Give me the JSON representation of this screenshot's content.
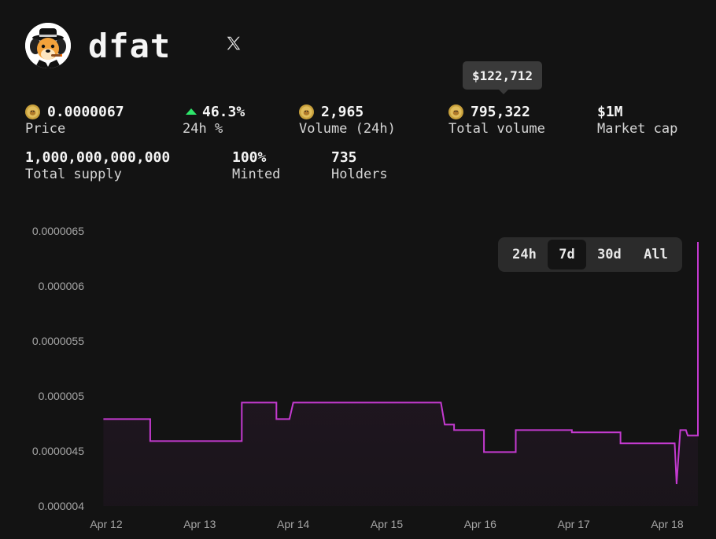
{
  "token": {
    "name": "dfat",
    "avatar_icon": "dog-in-hat-avatar-icon",
    "social_icon": "x-logo-icon"
  },
  "tooltip": {
    "text": "$122,712"
  },
  "stats": {
    "price": {
      "value": "0.0000067",
      "label": "Price",
      "icon": "doge-coin-icon"
    },
    "change": {
      "value": "46.3%",
      "label": "24h %",
      "icon": "triangle-up-icon",
      "color": "#2ee66b"
    },
    "volume24h": {
      "value": "2,965",
      "label": "Volume (24h)",
      "icon": "doge-coin-icon"
    },
    "total_volume": {
      "value": "795,322",
      "label": "Total volume",
      "icon": "doge-coin-icon"
    },
    "market_cap": {
      "value": "$1M",
      "label": "Market cap"
    },
    "total_supply": {
      "value": "1,000,000,000,000",
      "label": "Total supply"
    },
    "minted": {
      "value": "100%",
      "label": "Minted"
    },
    "holders": {
      "value": "735",
      "label": "Holders"
    }
  },
  "range_selector": {
    "options": [
      "24h",
      "7d",
      "30d",
      "All"
    ],
    "selected": "7d"
  },
  "colors": {
    "background": "#131313",
    "line": "#c43ad0",
    "positive": "#2ee66b",
    "coin": "#c9a13c"
  },
  "chart_data": {
    "type": "line",
    "step": true,
    "ylim": [
      4e-06,
      6.5e-06
    ],
    "yticks": [
      {
        "value": 6.5e-06,
        "label": "0.0000065"
      },
      {
        "value": 6e-06,
        "label": "0.000006"
      },
      {
        "value": 5.5e-06,
        "label": "0.0000055"
      },
      {
        "value": 5e-06,
        "label": "0.000005"
      },
      {
        "value": 4.5e-06,
        "label": "0.0000045"
      },
      {
        "value": 4e-06,
        "label": "0.000004"
      }
    ],
    "xlim": [
      0,
      6.5
    ],
    "xticks": [
      {
        "value": 0,
        "label": "Apr 12"
      },
      {
        "value": 1,
        "label": "Apr 13"
      },
      {
        "value": 2,
        "label": "Apr 14"
      },
      {
        "value": 3,
        "label": "Apr 15"
      },
      {
        "value": 4,
        "label": "Apr 16"
      },
      {
        "value": 5,
        "label": "Apr 17"
      },
      {
        "value": 6,
        "label": "Apr 18"
      }
    ],
    "grid": false,
    "series": [
      {
        "points": [
          [
            -0.03,
            4.79e-06
          ],
          [
            0.47,
            4.79e-06
          ],
          [
            0.47,
            4.59e-06
          ],
          [
            1.45,
            4.59e-06
          ],
          [
            1.45,
            4.94e-06
          ],
          [
            1.82,
            4.94e-06
          ],
          [
            1.82,
            4.79e-06
          ],
          [
            1.96,
            4.79e-06
          ],
          [
            2.0,
            4.94e-06
          ],
          [
            3.58,
            4.94e-06
          ],
          [
            3.62,
            4.74e-06
          ],
          [
            3.72,
            4.74e-06
          ],
          [
            3.72,
            4.69e-06
          ],
          [
            4.04,
            4.69e-06
          ],
          [
            4.04,
            4.49e-06
          ],
          [
            4.38,
            4.49e-06
          ],
          [
            4.38,
            4.69e-06
          ],
          [
            4.98,
            4.69e-06
          ],
          [
            4.98,
            4.67e-06
          ],
          [
            5.5,
            4.67e-06
          ],
          [
            5.5,
            4.57e-06
          ],
          [
            6.08,
            4.57e-06
          ],
          [
            6.1,
            4.2e-06
          ],
          [
            6.14,
            4.69e-06
          ],
          [
            6.2,
            4.69e-06
          ],
          [
            6.22,
            4.64e-06
          ],
          [
            6.45,
            4.64e-06
          ],
          [
            6.46,
            6.4e-06
          ]
        ]
      }
    ]
  }
}
